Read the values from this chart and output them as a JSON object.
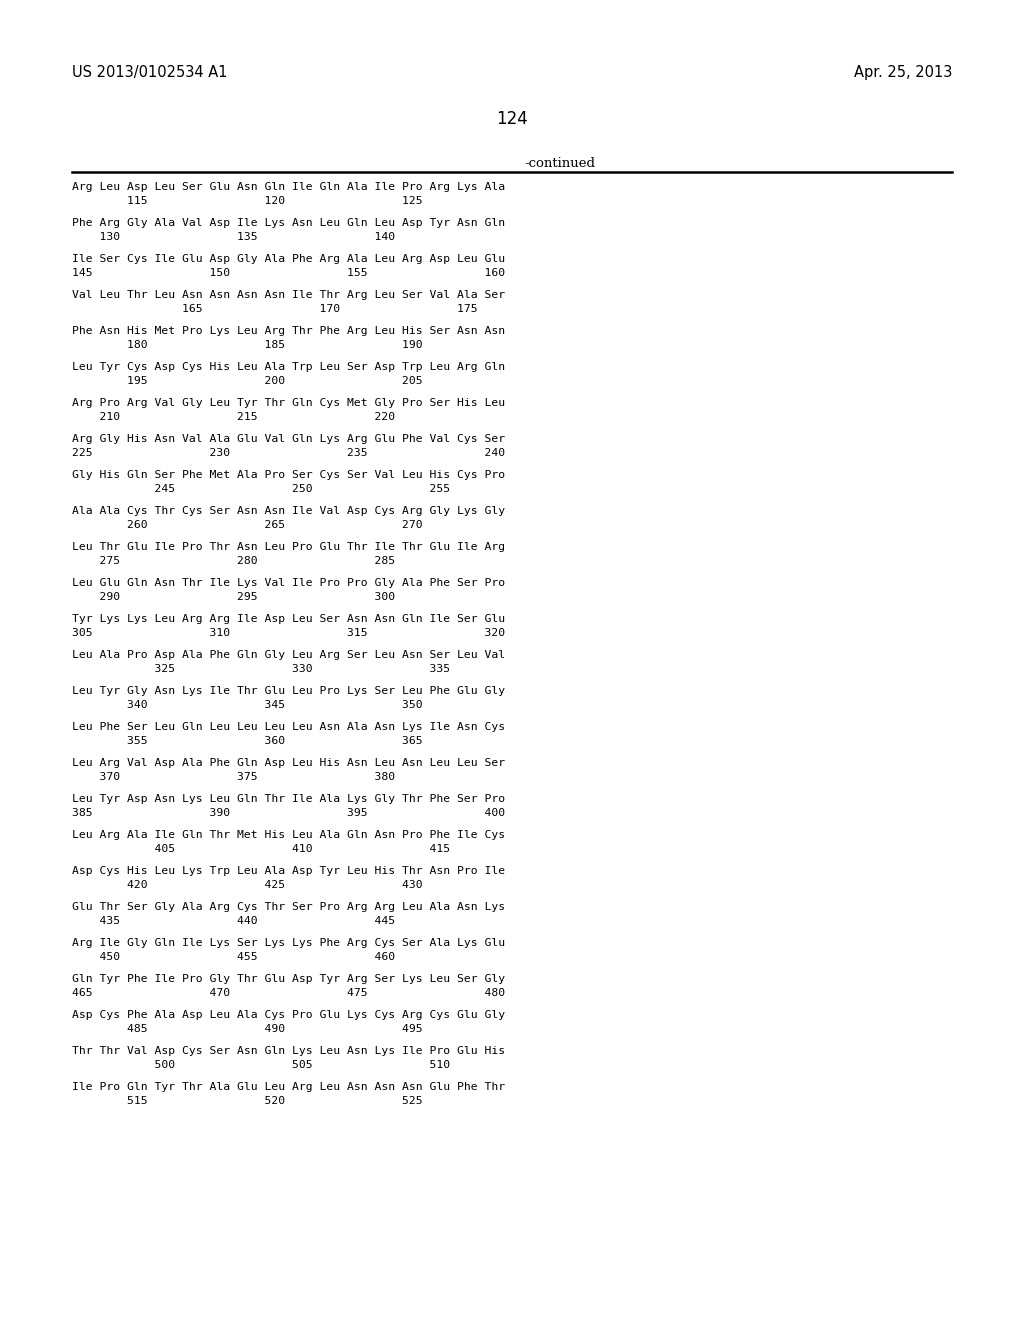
{
  "background_color": "#ffffff",
  "header_left": "US 2013/0102534 A1",
  "header_right": "Apr. 25, 2013",
  "page_number": "124",
  "continued_label": "-continued",
  "sequence_groups": [
    [
      "Arg Leu Asp Leu Ser Glu Asn Gln Ile Gln Ala Ile Pro Arg Lys Ala",
      "        115                 120                 125"
    ],
    [
      "Phe Arg Gly Ala Val Asp Ile Lys Asn Leu Gln Leu Asp Tyr Asn Gln",
      "    130                 135                 140"
    ],
    [
      "Ile Ser Cys Ile Glu Asp Gly Ala Phe Arg Ala Leu Arg Asp Leu Glu",
      "145                 150                 155                 160"
    ],
    [
      "Val Leu Thr Leu Asn Asn Asn Asn Ile Thr Arg Leu Ser Val Ala Ser",
      "                165                 170                 175"
    ],
    [
      "Phe Asn His Met Pro Lys Leu Arg Thr Phe Arg Leu His Ser Asn Asn",
      "        180                 185                 190"
    ],
    [
      "Leu Tyr Cys Asp Cys His Leu Ala Trp Leu Ser Asp Trp Leu Arg Gln",
      "        195                 200                 205"
    ],
    [
      "Arg Pro Arg Val Gly Leu Tyr Thr Gln Cys Met Gly Pro Ser His Leu",
      "    210                 215                 220"
    ],
    [
      "Arg Gly His Asn Val Ala Glu Val Gln Lys Arg Glu Phe Val Cys Ser",
      "225                 230                 235                 240"
    ],
    [
      "Gly His Gln Ser Phe Met Ala Pro Ser Cys Ser Val Leu His Cys Pro",
      "            245                 250                 255"
    ],
    [
      "Ala Ala Cys Thr Cys Ser Asn Asn Ile Val Asp Cys Arg Gly Lys Gly",
      "        260                 265                 270"
    ],
    [
      "Leu Thr Glu Ile Pro Thr Asn Leu Pro Glu Thr Ile Thr Glu Ile Arg",
      "    275                 280                 285"
    ],
    [
      "Leu Glu Gln Asn Thr Ile Lys Val Ile Pro Pro Gly Ala Phe Ser Pro",
      "    290                 295                 300"
    ],
    [
      "Tyr Lys Lys Leu Arg Arg Ile Asp Leu Ser Asn Asn Gln Ile Ser Glu",
      "305                 310                 315                 320"
    ],
    [
      "Leu Ala Pro Asp Ala Phe Gln Gly Leu Arg Ser Leu Asn Ser Leu Val",
      "            325                 330                 335"
    ],
    [
      "Leu Tyr Gly Asn Lys Ile Thr Glu Leu Pro Lys Ser Leu Phe Glu Gly",
      "        340                 345                 350"
    ],
    [
      "Leu Phe Ser Leu Gln Leu Leu Leu Leu Asn Ala Asn Lys Ile Asn Cys",
      "        355                 360                 365"
    ],
    [
      "Leu Arg Val Asp Ala Phe Gln Asp Leu His Asn Leu Asn Leu Leu Ser",
      "    370                 375                 380"
    ],
    [
      "Leu Tyr Asp Asn Lys Leu Gln Thr Ile Ala Lys Gly Thr Phe Ser Pro",
      "385                 390                 395                 400"
    ],
    [
      "Leu Arg Ala Ile Gln Thr Met His Leu Ala Gln Asn Pro Phe Ile Cys",
      "            405                 410                 415"
    ],
    [
      "Asp Cys His Leu Lys Trp Leu Ala Asp Tyr Leu His Thr Asn Pro Ile",
      "        420                 425                 430"
    ],
    [
      "Glu Thr Ser Gly Ala Arg Cys Thr Ser Pro Arg Arg Leu Ala Asn Lys",
      "    435                 440                 445"
    ],
    [
      "Arg Ile Gly Gln Ile Lys Ser Lys Lys Phe Arg Cys Ser Ala Lys Glu",
      "    450                 455                 460"
    ],
    [
      "Gln Tyr Phe Ile Pro Gly Thr Glu Asp Tyr Arg Ser Lys Leu Ser Gly",
      "465                 470                 475                 480"
    ],
    [
      "Asp Cys Phe Ala Asp Leu Ala Cys Pro Glu Lys Cys Arg Cys Glu Gly",
      "        485                 490                 495"
    ],
    [
      "Thr Thr Val Asp Cys Ser Asn Gln Lys Leu Asn Lys Ile Pro Glu His",
      "            500                 505                 510"
    ],
    [
      "Ile Pro Gln Tyr Thr Ala Glu Leu Arg Leu Asn Asn Asn Glu Phe Thr",
      "        515                 520                 525"
    ]
  ]
}
